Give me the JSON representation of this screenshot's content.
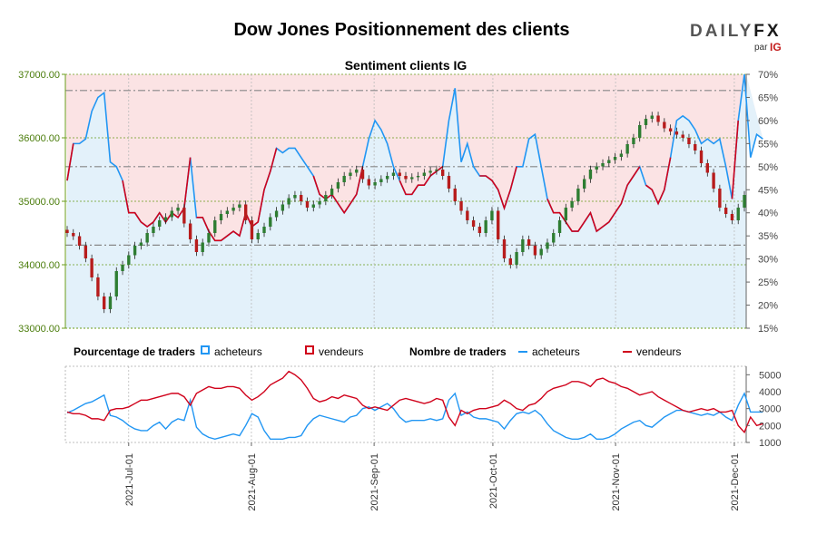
{
  "header": {
    "title": "Dow Jones Positionnement des clients",
    "subtitle": "Sentiment clients IG",
    "logo_main": "DAILY",
    "logo_fx": "FX",
    "logo_par": "par",
    "logo_ig": "IG"
  },
  "legend": {
    "pct_title": "Pourcentage de traders",
    "pct_buyers": "acheteurs",
    "pct_sellers": "vendeurs",
    "count_title": "Nombre de traders",
    "count_buyers": "acheteurs",
    "count_sellers": "vendeurs"
  },
  "colors": {
    "buyers": "#2196f3",
    "sellers": "#d0021b",
    "buyers_fill": "#e3f1fa",
    "sellers_fill": "#fbe3e4",
    "candle_up": "#2e7d32",
    "candle_down": "#b71c1c"
  },
  "chart_data": {
    "type": "candlestick+line",
    "title": "Dow Jones Positionnement des clients",
    "subtitle": "Sentiment clients IG",
    "x_dates": [
      "2021-Jul-01",
      "2021-Aug-01",
      "2021-Sep-01",
      "2021-Oct-01",
      "2021-Nov-01",
      "2021-Dec-01"
    ],
    "x_range": [
      "2021-06-15",
      "2021-12-04"
    ],
    "price": {
      "ylim": [
        33000,
        37000
      ],
      "ticks": [
        33000,
        34000,
        35000,
        36000,
        37000
      ],
      "tick_labels": [
        "33000.00",
        "34000.00",
        "35000.00",
        "36000.00",
        "37000.00"
      ],
      "closes": [
        34500,
        34450,
        34300,
        34100,
        33800,
        33500,
        33300,
        33500,
        33900,
        34000,
        34150,
        34300,
        34350,
        34500,
        34600,
        34700,
        34750,
        34850,
        34900,
        34650,
        34400,
        34200,
        34350,
        34500,
        34700,
        34800,
        34850,
        34900,
        34950,
        34700,
        34400,
        34500,
        34600,
        34750,
        34850,
        34950,
        35050,
        35100,
        35000,
        34900,
        34950,
        35000,
        35100,
        35200,
        35300,
        35400,
        35450,
        35500,
        35350,
        35250,
        35300,
        35350,
        35400,
        35450,
        35400,
        35350,
        35380,
        35400,
        35450,
        35480,
        35500,
        35400,
        35200,
        35000,
        34850,
        34700,
        34600,
        34500,
        34700,
        34850,
        34400,
        34100,
        34000,
        34200,
        34400,
        34300,
        34150,
        34250,
        34350,
        34500,
        34700,
        34900,
        35000,
        35200,
        35350,
        35500,
        35550,
        35600,
        35650,
        35700,
        35750,
        35900,
        36000,
        36200,
        36300,
        36350,
        36250,
        36150,
        36100,
        36050,
        36000,
        35900,
        35800,
        35600,
        35450,
        35200,
        34900,
        34800,
        34700,
        34900,
        35100
      ],
      "high_wick": 60,
      "low_wick": 60
    },
    "sentiment": {
      "ylim": [
        15,
        70
      ],
      "ticks": [
        15,
        20,
        25,
        30,
        35,
        40,
        45,
        50,
        55,
        60,
        65,
        70
      ],
      "tick_labels": [
        "15%",
        "20%",
        "25%",
        "30%",
        "35%",
        "40%",
        "45%",
        "50%",
        "55%",
        "60%",
        "65%",
        "70%"
      ],
      "reference_lines": [
        33,
        50,
        66.5
      ],
      "buyers_pct": [
        47,
        55,
        55,
        56,
        62,
        65,
        66,
        51,
        50,
        47,
        40,
        40,
        38,
        37,
        38,
        40,
        38,
        40,
        39,
        41,
        52,
        39,
        39,
        36,
        34,
        34,
        35,
        36,
        35,
        40,
        37,
        38,
        45,
        49,
        54,
        53,
        54,
        54,
        52,
        50,
        48,
        44,
        43,
        44,
        42,
        40,
        42,
        44,
        50,
        56,
        60,
        58,
        55,
        50,
        47,
        44,
        44,
        46,
        46,
        48,
        49,
        50,
        60,
        67,
        51,
        55,
        50,
        48,
        48,
        47,
        45,
        41,
        45,
        50,
        50,
        56,
        57,
        50,
        43,
        40,
        40,
        38,
        36,
        36,
        38,
        40,
        36,
        37,
        38,
        40,
        42,
        46,
        48,
        50,
        46,
        45,
        42,
        45,
        52,
        60,
        61,
        60,
        58,
        55,
        56,
        55,
        56,
        50,
        43,
        60,
        70,
        52,
        57,
        56
      ],
      "sellers_pct": [
        53,
        45,
        45,
        44,
        38,
        35,
        34,
        49,
        50,
        53,
        60,
        60,
        62,
        63,
        62,
        60,
        62,
        60,
        61,
        59,
        48,
        61,
        61,
        64,
        66,
        66,
        65,
        64,
        65,
        60,
        63,
        62,
        55,
        51,
        46,
        47,
        46,
        46,
        48,
        50,
        52,
        56,
        57,
        56,
        58,
        60,
        58,
        56,
        50,
        44,
        40,
        42,
        45,
        50,
        53,
        56,
        56,
        54,
        54,
        52,
        51,
        50,
        40,
        33,
        49,
        45,
        50,
        52,
        52,
        53,
        55,
        59,
        55,
        50,
        50,
        44,
        43,
        50,
        57,
        60,
        60,
        62,
        64,
        64,
        62,
        60,
        64,
        63,
        62,
        60,
        58,
        54,
        52,
        50,
        54,
        55,
        58,
        55,
        48,
        40,
        39,
        40,
        42,
        45,
        44,
        45,
        44,
        50,
        57,
        40,
        30,
        48,
        43,
        44
      ]
    },
    "counts": {
      "ylim": [
        1000,
        5500
      ],
      "ticks": [
        1000,
        2000,
        3000,
        4000,
        5000
      ],
      "tick_labels": [
        "1000",
        "2000",
        "3000",
        "4000",
        "5000"
      ],
      "buyers": [
        2750,
        2900,
        3100,
        3300,
        3400,
        3600,
        3800,
        2600,
        2500,
        2300,
        2000,
        1800,
        1700,
        1700,
        2000,
        2200,
        1800,
        2200,
        2400,
        2300,
        3500,
        1900,
        1500,
        1300,
        1200,
        1300,
        1400,
        1500,
        1400,
        2000,
        2700,
        2500,
        1700,
        1200,
        1200,
        1200,
        1300,
        1300,
        1400,
        2000,
        2400,
        2600,
        2500,
        2400,
        2300,
        2200,
        2500,
        2600,
        3000,
        3100,
        2900,
        3100,
        3300,
        3000,
        2500,
        2200,
        2300,
        2300,
        2300,
        2400,
        2300,
        2400,
        3500,
        3900,
        2600,
        2800,
        2500,
        2400,
        2400,
        2300,
        2200,
        1800,
        2300,
        2700,
        2800,
        2700,
        2900,
        2600,
        2100,
        1700,
        1500,
        1300,
        1200,
        1200,
        1300,
        1500,
        1200,
        1200,
        1300,
        1500,
        1800,
        2000,
        2200,
        2300,
        2000,
        1900,
        2200,
        2500,
        2700,
        2900,
        2900,
        2800,
        2700,
        2600,
        2700,
        2600,
        2800,
        2500,
        2300,
        3200,
        3900,
        2800,
        2800,
        2800
      ],
      "sellers": [
        2800,
        2700,
        2700,
        2600,
        2400,
        2400,
        2300,
        2900,
        3000,
        3000,
        3100,
        3300,
        3500,
        3500,
        3600,
        3700,
        3800,
        3900,
        3900,
        3700,
        3200,
        3900,
        4100,
        4300,
        4200,
        4200,
        4300,
        4300,
        4200,
        3800,
        3500,
        3700,
        4000,
        4400,
        4600,
        4800,
        5200,
        5000,
        4700,
        4200,
        3600,
        3400,
        3500,
        3700,
        3600,
        3800,
        3700,
        3600,
        3200,
        3000,
        3100,
        3000,
        2900,
        3200,
        3500,
        3600,
        3500,
        3400,
        3300,
        3400,
        3600,
        3500,
        2500,
        2000,
        2900,
        2700,
        2900,
        3000,
        3000,
        3100,
        3200,
        3500,
        3300,
        3000,
        2900,
        3200,
        3300,
        3600,
        4000,
        4200,
        4300,
        4400,
        4600,
        4600,
        4500,
        4300,
        4700,
        4800,
        4600,
        4500,
        4300,
        4200,
        4000,
        3800,
        3900,
        4000,
        3700,
        3500,
        3300,
        3100,
        2900,
        2800,
        2900,
        3000,
        2900,
        3000,
        2800,
        2800,
        2900,
        2000,
        1600,
        2500,
        2000,
        2100
      ]
    }
  }
}
